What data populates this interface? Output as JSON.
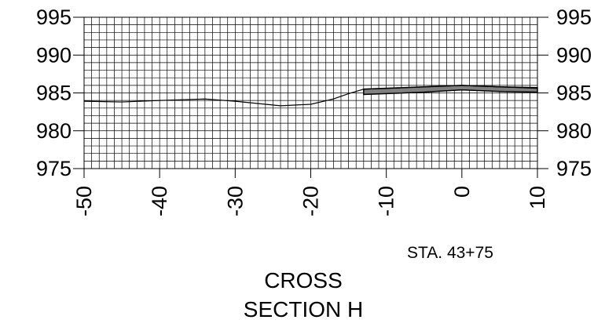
{
  "chart_data": {
    "type": "line",
    "xlim": [
      -50,
      10
    ],
    "ylim": [
      975,
      995
    ],
    "x_ticks": [
      "-50",
      "-40",
      "-30",
      "-20",
      "-10",
      "0",
      "10"
    ],
    "y_ticks": [
      "995",
      "990",
      "985",
      "980",
      "975"
    ],
    "grid": true,
    "series": [
      {
        "x": [
          -50,
          -45,
          -40,
          -34,
          -30,
          -24,
          -20,
          -17,
          -15,
          -13,
          -10,
          -5,
          0,
          5,
          10
        ],
        "y": [
          983.9,
          983.8,
          984.0,
          984.2,
          983.9,
          983.3,
          983.5,
          984.2,
          984.9,
          985.5,
          985.6,
          985.8,
          986.0,
          985.8,
          985.6
        ]
      }
    ],
    "band": {
      "x": [
        -13,
        -5,
        0,
        5,
        10
      ],
      "top": [
        985.5,
        985.8,
        986.0,
        985.8,
        985.7
      ],
      "bottom": [
        984.8,
        985.1,
        985.4,
        985.2,
        985.1
      ],
      "color": "#808080"
    }
  },
  "labels": {
    "station": "STA. 43+75",
    "title_line_1": "CROSS",
    "title_line_2": "SECTION H"
  }
}
